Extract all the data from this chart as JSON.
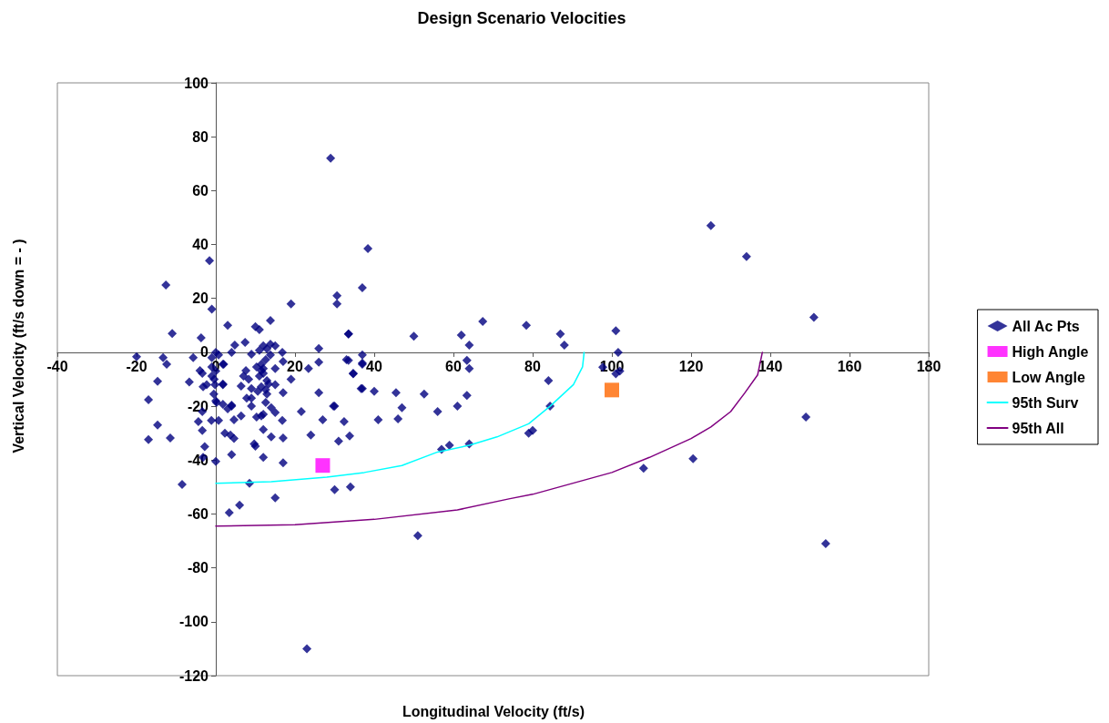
{
  "chart_data": {
    "type": "scatter",
    "title": "Design Scenario Velocities",
    "xlabel": "Longitudinal Velocity (ft/s)",
    "ylabel": "Vertical Velocity (ft/s down = - )",
    "xlim": [
      -40,
      180
    ],
    "xticks": [
      -40,
      -20,
      0,
      20,
      40,
      60,
      80,
      100,
      120,
      140,
      160,
      180
    ],
    "ylim": [
      -120,
      100
    ],
    "yticks": [
      -120,
      -100,
      -80,
      -60,
      -40,
      -20,
      0,
      20,
      40,
      60,
      80,
      100
    ],
    "grid": false,
    "legend": "right",
    "series": [
      {
        "name": "All Ac Pts",
        "marker": "diamond",
        "color": "#000080",
        "x": [
          29,
          38.4,
          37,
          -1.6,
          -1,
          -12.6,
          -11,
          -3.7,
          3,
          10,
          11,
          13.8,
          19,
          30.6,
          30.6,
          33.5,
          26,
          4.8,
          7.4,
          4,
          -20,
          -13.3,
          -12.4,
          -14.7,
          -17,
          -6.7,
          -4,
          -3.4,
          -3.2,
          -2.3,
          -5.7,
          0,
          -1,
          0.7,
          -1,
          0,
          -1,
          -0.4,
          -0.2,
          -0.5,
          1.8,
          2,
          0,
          9,
          11,
          12,
          13.8,
          15,
          12.9,
          13.8,
          12.6,
          16.8,
          17,
          15,
          11.5,
          10.3,
          11.5,
          12,
          7.6,
          7,
          8.3,
          11,
          12,
          12.9,
          13.3,
          15,
          11.5,
          10.6,
          6.4,
          9,
          12.6,
          12.9,
          7.8,
          9,
          17,
          19,
          23.4,
          26,
          26,
          30,
          34.7,
          33,
          37,
          37,
          1.8,
          1.8,
          4,
          -3.4,
          -4.4,
          -1.1,
          0.7,
          -3.4,
          -2.8,
          -3.2,
          0,
          -14.7,
          -17,
          -11.5,
          -8.5,
          0.2,
          1.8,
          4,
          3,
          4.6,
          6.4,
          2.3,
          3.7,
          4.6,
          9.7,
          10,
          4,
          8.5,
          3.4,
          6,
          12,
          17,
          15,
          12,
          14,
          17,
          16.8,
          10.3,
          11.5,
          12,
          9,
          12.6,
          14,
          15,
          21.6,
          24,
          27,
          29.7,
          31,
          32.4,
          33.8,
          30,
          34,
          67.4,
          78.4,
          50,
          62,
          64,
          87,
          88,
          101,
          101.6,
          97.7,
          101,
          102,
          84,
          84.4,
          63.4,
          64,
          63.4,
          61,
          56,
          52.6,
          45.5,
          47,
          46,
          41,
          40,
          36.7,
          34.7,
          37,
          37,
          33.5,
          33.5,
          79,
          80,
          125,
          134,
          151,
          149,
          154,
          120.5,
          108,
          57,
          59,
          64,
          51,
          23
        ],
        "values": [
          72,
          38.5,
          24,
          34,
          16,
          25,
          7,
          5.4,
          10,
          9.5,
          8.4,
          11.8,
          18,
          21,
          18,
          6.8,
          1.4,
          2.7,
          3.7,
          0,
          -1.6,
          -2,
          -4.4,
          -10.8,
          -17.6,
          -11,
          -6.8,
          -7.8,
          -12.8,
          -12,
          -2,
          0,
          -2,
          -1,
          -5.4,
          -7,
          -8.8,
          -10,
          -12,
          -15.5,
          -12,
          -4.4,
          -18,
          -0.7,
          0.7,
          2.4,
          3,
          2.4,
          1.3,
          -1,
          -2.7,
          0,
          -3.4,
          -6,
          -4.4,
          -5.4,
          -6.8,
          -6,
          -6.8,
          -8.8,
          -10,
          -8.8,
          -7.8,
          -10.5,
          -11.8,
          -12,
          -12.8,
          -14.5,
          -12.5,
          -13.5,
          -13.9,
          -15.5,
          -17,
          -17,
          -15,
          -10,
          -6,
          -3.7,
          -15,
          -20,
          -7.8,
          -2.7,
          -4.4,
          -13.5,
          -4.4,
          -11.8,
          -19.6,
          -22,
          -25.7,
          -25.3,
          -25.3,
          -29,
          -35,
          -39,
          -40.5,
          -27,
          -32.4,
          -31.8,
          -49,
          -18.6,
          -19.3,
          -20,
          -21,
          -25,
          -23.6,
          -30,
          -30.7,
          -32,
          -34,
          -34.8,
          -38,
          -48.6,
          -59.5,
          -56.7,
          -39,
          -41,
          -54,
          -28.7,
          -31.4,
          -31.8,
          -25.3,
          -24,
          -23.6,
          -23,
          -20,
          -18.6,
          -20.6,
          -22.3,
          -22,
          -30.7,
          -25,
          -20,
          -33,
          -25.7,
          -31,
          -51,
          -50,
          11.5,
          10,
          6,
          6.4,
          2.7,
          6.8,
          2.7,
          8,
          0,
          -5.5,
          -8,
          -7,
          -10.5,
          -20,
          -3,
          -6,
          -16,
          -20,
          -22,
          -15.5,
          -15,
          -20.6,
          -24.7,
          -25,
          -14.5,
          -13.5,
          -8,
          -4,
          -1,
          6.8,
          -3,
          -30,
          -29,
          47,
          35.5,
          13,
          -24,
          -71,
          -39.5,
          -43,
          -36,
          -34.5,
          -34,
          -68,
          -110
        ]
      },
      {
        "name": "High Angle",
        "marker": "square",
        "color": "#ff00ff",
        "x": [
          27
        ],
        "values": [
          -42
        ]
      },
      {
        "name": "Low Angle",
        "marker": "square",
        "color": "#ff6600",
        "x": [
          100
        ],
        "values": [
          -14
        ]
      },
      {
        "name": "95th Surv",
        "type": "line",
        "marker": "none",
        "line_style": "solid",
        "color": "#00ffff",
        "x": [
          0,
          14,
          28,
          37.5,
          47,
          56,
          64,
          71,
          79,
          84.4,
          90.3,
          92.6,
          93
        ],
        "values": [
          -48.6,
          -48,
          -46.3,
          -44.6,
          -42,
          -37,
          -34.5,
          -31.4,
          -26.5,
          -20,
          -12,
          -5.4,
          0
        ]
      },
      {
        "name": "95th All",
        "type": "line",
        "marker": "none",
        "line_style": "solid",
        "color": "#800080",
        "x": [
          0,
          20,
          40,
          61,
          74,
          80,
          100,
          109.5,
          120,
          125,
          130,
          133.5,
          136.8,
          138
        ],
        "values": [
          -64.5,
          -64,
          -62,
          -58.5,
          -54.4,
          -52.7,
          -44.6,
          -39,
          -32,
          -27.7,
          -22,
          -15.2,
          -8.4,
          0
        ]
      }
    ]
  }
}
